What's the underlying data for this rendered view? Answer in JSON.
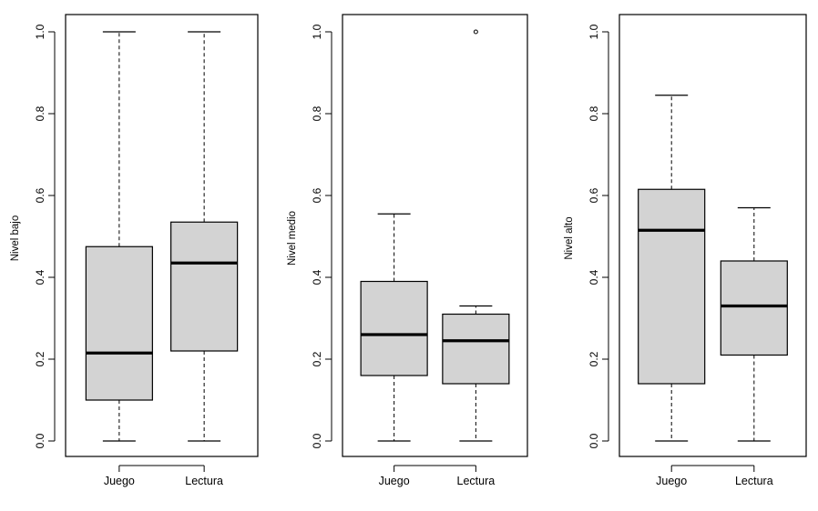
{
  "chart_data": [
    {
      "type": "boxplot",
      "ylabel": "Nivel bajo",
      "categories": [
        "Juego",
        "Lectura"
      ],
      "ylim": [
        0,
        1
      ],
      "yticks": [
        "0.0",
        "0.2",
        "0.4",
        "0.6",
        "0.8",
        "1.0"
      ],
      "boxes": [
        {
          "whisker_low": 0.0,
          "q1": 0.1,
          "median": 0.215,
          "q3": 0.475,
          "whisker_high": 1.0,
          "outliers": []
        },
        {
          "whisker_low": 0.0,
          "q1": 0.22,
          "median": 0.435,
          "q3": 0.535,
          "whisker_high": 1.0,
          "outliers": []
        }
      ]
    },
    {
      "type": "boxplot",
      "ylabel": "Nivel medio",
      "categories": [
        "Juego",
        "Lectura"
      ],
      "ylim": [
        0,
        1
      ],
      "yticks": [
        "0.0",
        "0.2",
        "0.4",
        "0.6",
        "0.8",
        "1.0"
      ],
      "boxes": [
        {
          "whisker_low": 0.0,
          "q1": 0.16,
          "median": 0.26,
          "q3": 0.39,
          "whisker_high": 0.555,
          "outliers": []
        },
        {
          "whisker_low": 0.0,
          "q1": 0.14,
          "median": 0.245,
          "q3": 0.31,
          "whisker_high": 0.33,
          "outliers": [
            1.0
          ]
        }
      ]
    },
    {
      "type": "boxplot",
      "ylabel": "Nivel alto",
      "categories": [
        "Juego",
        "Lectura"
      ],
      "ylim": [
        0,
        1
      ],
      "yticks": [
        "0.0",
        "0.2",
        "0.4",
        "0.6",
        "0.8",
        "1.0"
      ],
      "boxes": [
        {
          "whisker_low": 0.0,
          "q1": 0.14,
          "median": 0.515,
          "q3": 0.615,
          "whisker_high": 0.845,
          "outliers": []
        },
        {
          "whisker_low": 0.0,
          "q1": 0.21,
          "median": 0.33,
          "q3": 0.44,
          "whisker_high": 0.57,
          "outliers": []
        }
      ]
    }
  ],
  "colors": {
    "box_fill": "#d3d3d3",
    "stroke": "#000000",
    "background": "#ffffff"
  }
}
